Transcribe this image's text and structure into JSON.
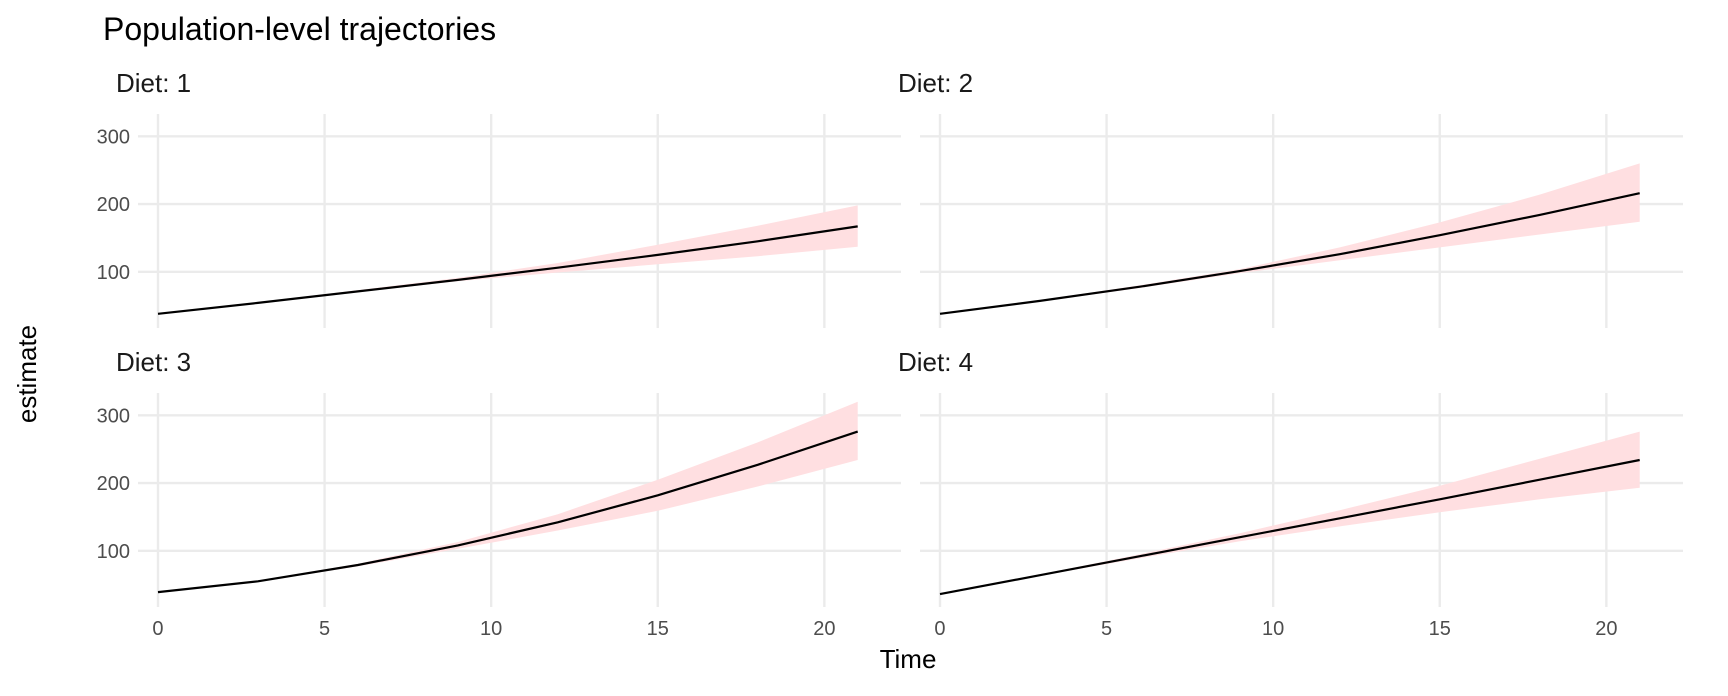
{
  "chart_data": {
    "type": "line",
    "title": "Population-level trajectories",
    "xlabel": "Time",
    "ylabel": "estimate",
    "facet_label_prefix": "Diet: ",
    "xlim": [
      -0.6,
      22.3
    ],
    "ylim": [
      17,
      333
    ],
    "x_ticks": [
      0,
      5,
      10,
      15,
      20
    ],
    "y_ticks": [
      100,
      200,
      300
    ],
    "grid": true,
    "legend": "none",
    "colors": {
      "line": "#000000",
      "band": "#ffdfe1",
      "grid": "#ebebeb"
    },
    "facets": [
      {
        "label": "1",
        "x": [
          0,
          3,
          6,
          9,
          12,
          15,
          18,
          21
        ],
        "y": [
          38,
          54,
          71,
          88,
          106,
          125,
          145,
          167
        ],
        "lower": [
          38,
          53,
          70,
          86,
          99,
          111,
          123,
          137
        ],
        "upper": [
          38,
          55,
          73,
          91,
          113,
          140,
          168,
          198
        ]
      },
      {
        "label": "2",
        "x": [
          0,
          3,
          6,
          9,
          12,
          15,
          18,
          21
        ],
        "y": [
          38,
          57,
          78,
          101,
          126,
          154,
          184,
          216
        ],
        "lower": [
          38,
          56,
          76,
          98,
          117,
          136,
          155,
          174
        ],
        "upper": [
          38,
          58,
          80,
          104,
          136,
          173,
          214,
          260
        ]
      },
      {
        "label": "3",
        "x": [
          0,
          3,
          6,
          9,
          12,
          15,
          18,
          21
        ],
        "y": [
          39,
          55,
          79,
          108,
          142,
          182,
          227,
          276
        ],
        "lower": [
          39,
          54,
          77,
          103,
          130,
          159,
          195,
          234
        ],
        "upper": [
          39,
          56,
          81,
          113,
          154,
          205,
          260,
          320
        ]
      },
      {
        "label": "4",
        "x": [
          0,
          3,
          6,
          9,
          12,
          15,
          18,
          21
        ],
        "y": [
          36,
          64,
          92,
          120,
          148,
          176,
          205,
          234
        ],
        "lower": [
          36,
          63,
          89,
          114,
          136,
          157,
          176,
          193
        ],
        "upper": [
          36,
          65,
          95,
          126,
          160,
          196,
          236,
          276
        ]
      }
    ]
  }
}
